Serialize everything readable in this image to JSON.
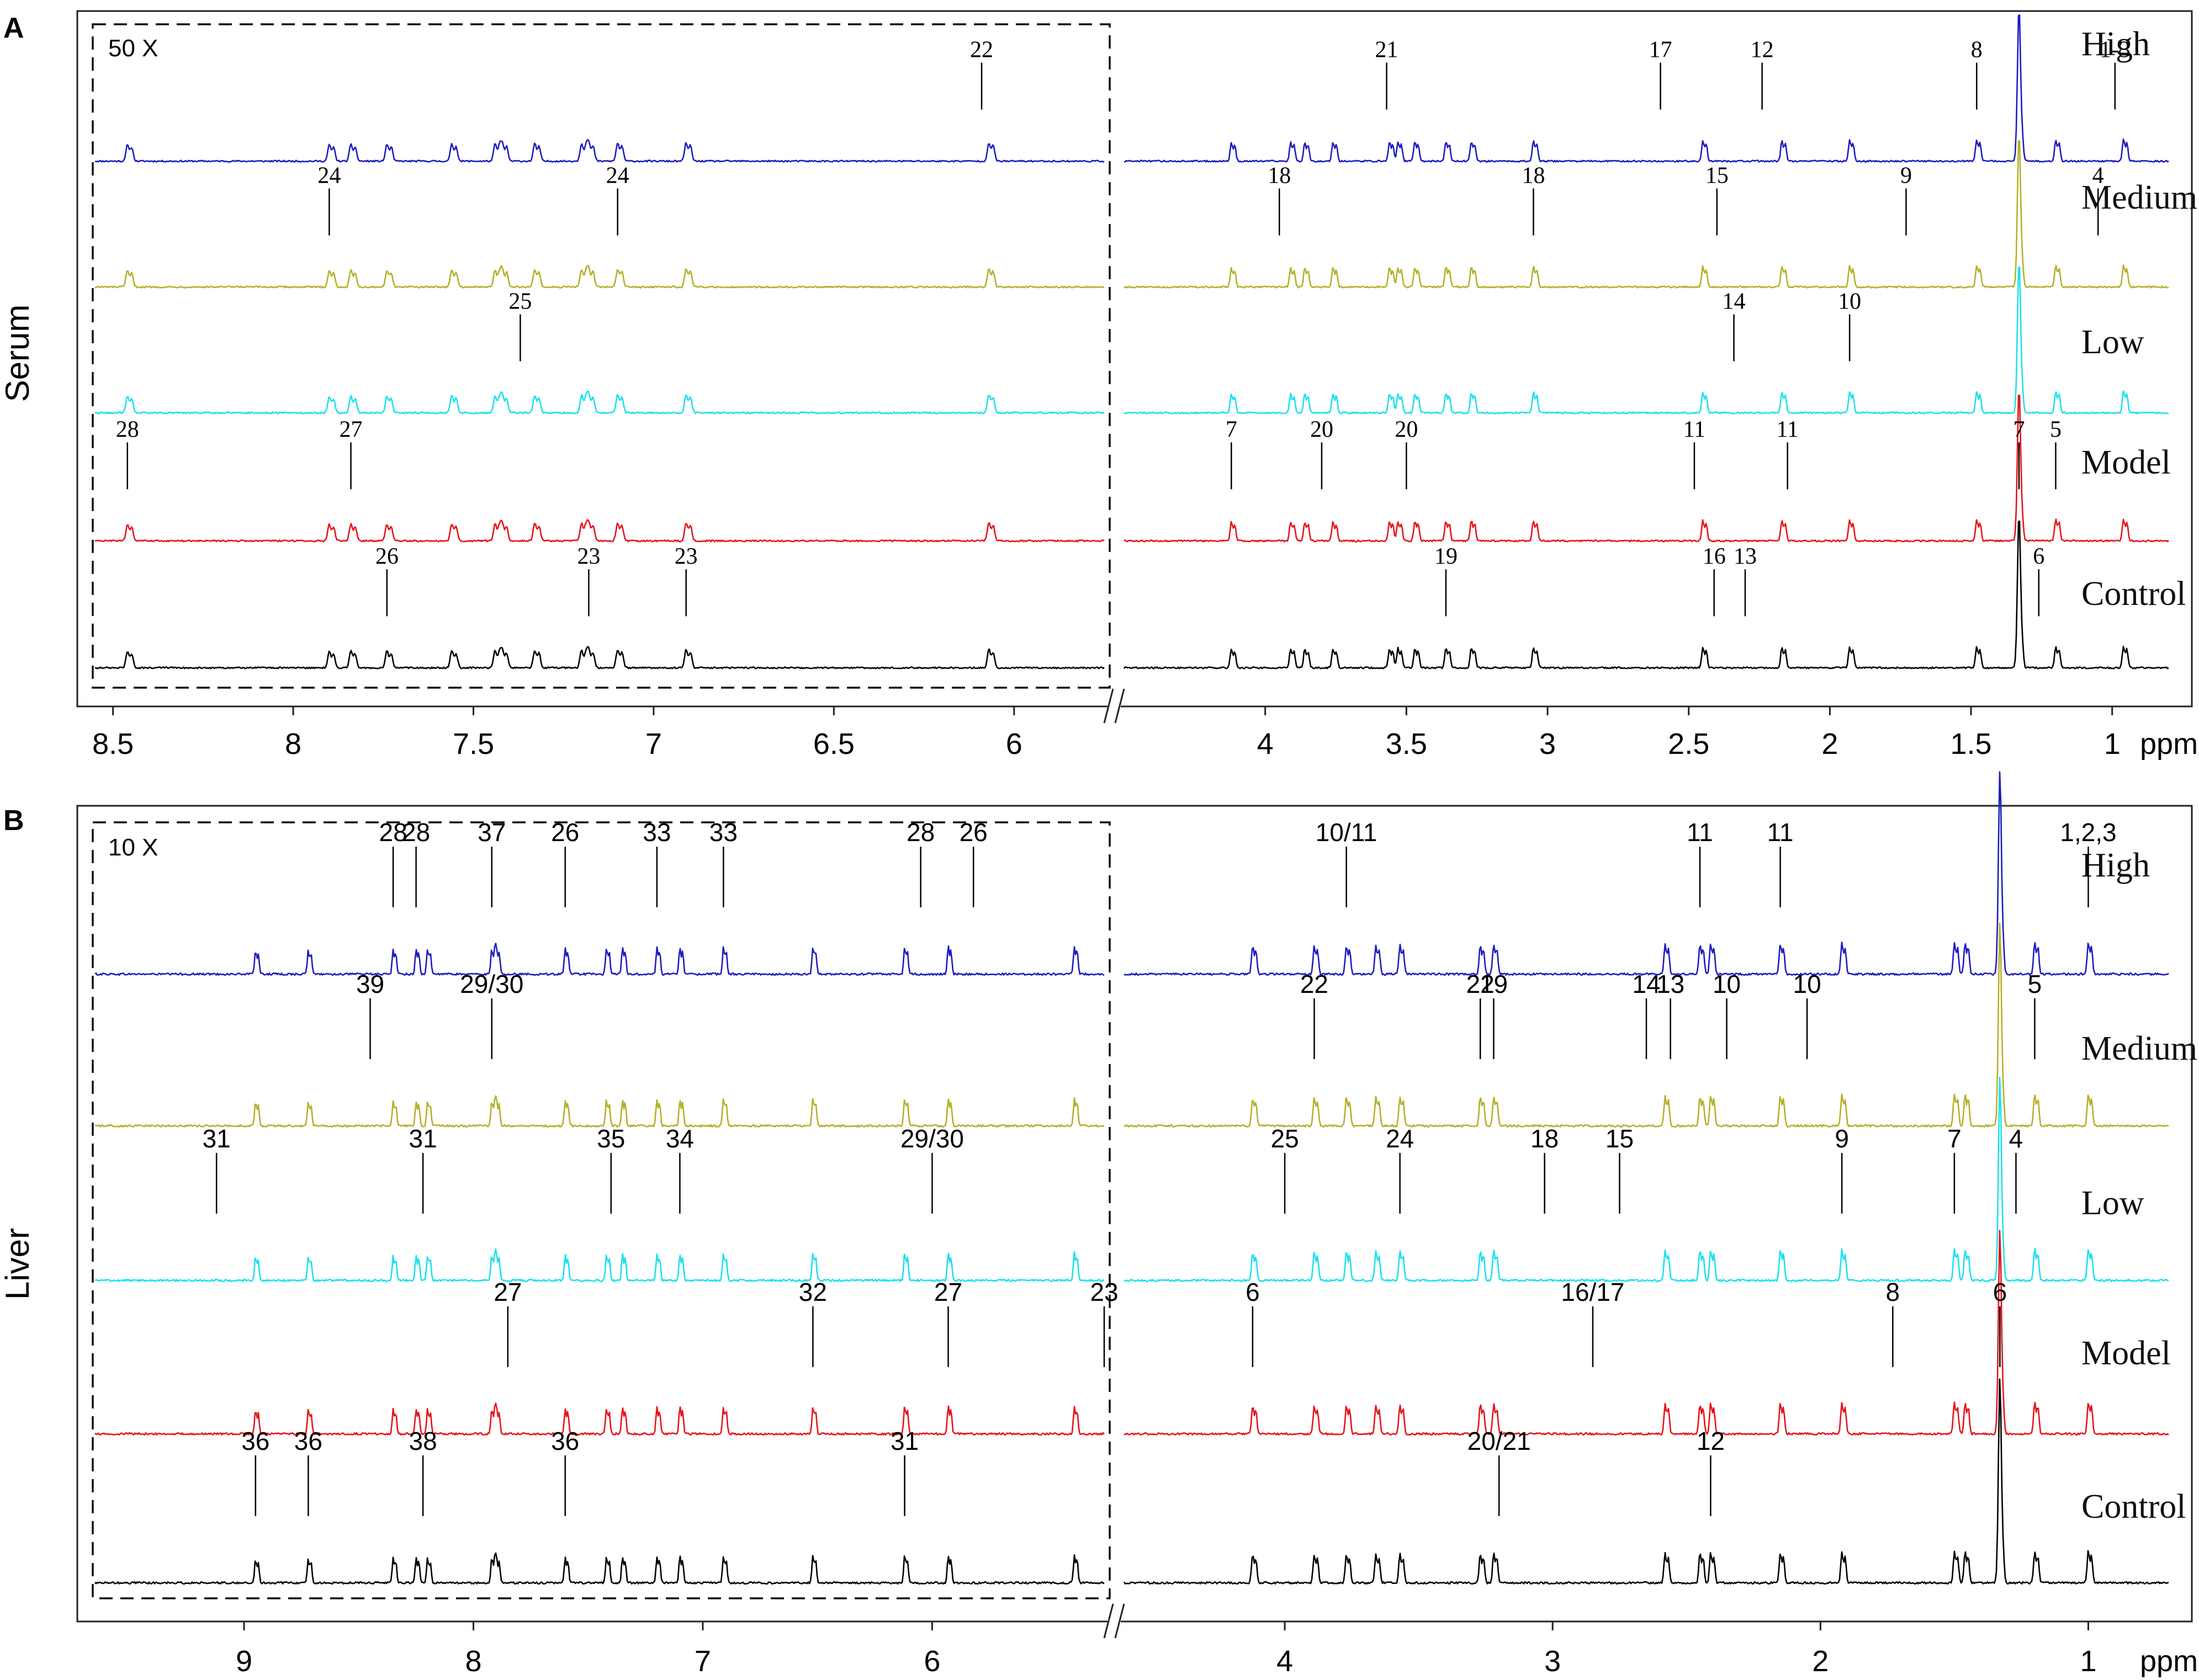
{
  "panels": [
    {
      "letter": "A",
      "tissue": "Serum",
      "scale_label": "50 X",
      "unit": "ppm",
      "groups": [
        {
          "name": "High",
          "color": "#1d1dbf"
        },
        {
          "name": "Medium",
          "color": "#b5b02a"
        },
        {
          "name": "Low",
          "color": "#1ee0ee"
        },
        {
          "name": "Model",
          "color": "#e6141b"
        },
        {
          "name": "Control",
          "color": "#000000"
        }
      ],
      "ticks_left": [
        "8.5",
        "8",
        "7.5",
        "7",
        "6.5",
        "6"
      ],
      "ticks_right": [
        "4",
        "3.5",
        "3",
        "2.5",
        "2",
        "1.5",
        "1"
      ]
    },
    {
      "letter": "B",
      "tissue": "Liver",
      "scale_label": "10 X",
      "unit": "ppm",
      "groups": [
        {
          "name": "High",
          "color": "#1d1dbf"
        },
        {
          "name": "Medium",
          "color": "#b5b02a"
        },
        {
          "name": "Low",
          "color": "#1ee0ee"
        },
        {
          "name": "Model",
          "color": "#e6141b"
        },
        {
          "name": "Control",
          "color": "#000000"
        }
      ],
      "ticks_left": [
        "9",
        "8",
        "7",
        "6"
      ],
      "ticks_right": [
        "4",
        "3",
        "2",
        "1"
      ]
    }
  ],
  "chart_data": [
    {
      "type": "line",
      "title": "",
      "xlabel": "ppm",
      "ylabel": "",
      "x_reversed": true,
      "x_segments": [
        [
          8.55,
          5.75
        ],
        [
          4.5,
          0.8
        ]
      ],
      "left_segment_scale": "50 X",
      "series": [
        {
          "name": "High",
          "peaks_ppm": [
            8.46,
            7.9,
            7.84,
            7.74,
            7.56,
            7.44,
            7.42,
            7.33,
            7.2,
            7.18,
            7.1,
            6.91,
            6.07,
            4.12,
            3.91,
            3.86,
            3.76,
            3.56,
            3.53,
            3.47,
            3.36,
            3.27,
            3.05,
            2.45,
            2.17,
            1.93,
            1.48,
            1.33,
            1.2,
            0.96
          ]
        },
        {
          "name": "Medium",
          "peaks_ppm": [
            8.46,
            7.9,
            7.84,
            7.74,
            7.56,
            7.44,
            7.42,
            7.33,
            7.2,
            7.18,
            7.1,
            6.91,
            6.07,
            4.12,
            3.91,
            3.86,
            3.76,
            3.56,
            3.53,
            3.47,
            3.36,
            3.27,
            3.05,
            2.45,
            2.17,
            1.93,
            1.48,
            1.33,
            1.2,
            0.96
          ]
        },
        {
          "name": "Low",
          "peaks_ppm": [
            8.46,
            7.9,
            7.84,
            7.74,
            7.56,
            7.44,
            7.42,
            7.33,
            7.2,
            7.18,
            7.1,
            6.91,
            6.07,
            4.12,
            3.91,
            3.86,
            3.76,
            3.56,
            3.53,
            3.47,
            3.36,
            3.27,
            3.05,
            2.45,
            2.17,
            1.93,
            1.48,
            1.33,
            1.2,
            0.96
          ]
        },
        {
          "name": "Model",
          "peaks_ppm": [
            8.46,
            7.9,
            7.84,
            7.74,
            7.56,
            7.44,
            7.42,
            7.33,
            7.2,
            7.18,
            7.1,
            6.91,
            6.07,
            4.12,
            3.91,
            3.86,
            3.76,
            3.56,
            3.53,
            3.47,
            3.36,
            3.27,
            3.05,
            2.45,
            2.17,
            1.93,
            1.48,
            1.33,
            1.2,
            0.96
          ]
        },
        {
          "name": "Control",
          "peaks_ppm": [
            8.46,
            7.9,
            7.84,
            7.74,
            7.56,
            7.44,
            7.42,
            7.33,
            7.2,
            7.18,
            7.1,
            6.91,
            6.07,
            4.12,
            3.91,
            3.86,
            3.76,
            3.56,
            3.53,
            3.47,
            3.36,
            3.27,
            3.05,
            2.45,
            2.17,
            1.93,
            1.48,
            1.33,
            1.2,
            0.96
          ]
        }
      ],
      "annotations": [
        {
          "label": "22",
          "x": 6.09,
          "series": "High"
        },
        {
          "label": "21",
          "x": 3.57,
          "series": "High"
        },
        {
          "label": "17",
          "x": 2.6,
          "series": "High"
        },
        {
          "label": "12",
          "x": 2.24,
          "series": "High"
        },
        {
          "label": "8",
          "x": 1.48,
          "series": "High"
        },
        {
          "label": "1-3",
          "x": 0.99,
          "series": "High"
        },
        {
          "label": "24",
          "x": 7.9,
          "series": "Medium"
        },
        {
          "label": "24",
          "x": 7.1,
          "series": "Medium"
        },
        {
          "label": "18",
          "x": 3.95,
          "series": "Medium"
        },
        {
          "label": "18",
          "x": 3.05,
          "series": "Medium"
        },
        {
          "label": "15",
          "x": 2.4,
          "series": "Medium"
        },
        {
          "label": "9",
          "x": 1.73,
          "series": "Medium"
        },
        {
          "label": "4",
          "x": 1.05,
          "series": "Medium"
        },
        {
          "label": "25",
          "x": 7.37,
          "series": "Low"
        },
        {
          "label": "14",
          "x": 2.34,
          "series": "Low"
        },
        {
          "label": "10",
          "x": 1.93,
          "series": "Low"
        },
        {
          "label": "28",
          "x": 8.46,
          "series": "Model"
        },
        {
          "label": "27",
          "x": 7.84,
          "series": "Model"
        },
        {
          "label": "7",
          "x": 4.12,
          "series": "Model"
        },
        {
          "label": "20",
          "x": 3.8,
          "series": "Model"
        },
        {
          "label": "20",
          "x": 3.5,
          "series": "Model"
        },
        {
          "label": "11",
          "x": 2.48,
          "series": "Model"
        },
        {
          "label": "11",
          "x": 2.15,
          "series": "Model"
        },
        {
          "label": "7",
          "x": 1.33,
          "series": "Model"
        },
        {
          "label": "5",
          "x": 1.2,
          "series": "Model"
        },
        {
          "label": "26",
          "x": 7.74,
          "series": "Control"
        },
        {
          "label": "23",
          "x": 7.18,
          "series": "Control"
        },
        {
          "label": "23",
          "x": 6.91,
          "series": "Control"
        },
        {
          "label": "19",
          "x": 3.36,
          "series": "Control"
        },
        {
          "label": "16",
          "x": 2.41,
          "series": "Control"
        },
        {
          "label": "13",
          "x": 2.3,
          "series": "Control"
        },
        {
          "label": "6",
          "x": 1.26,
          "series": "Control"
        }
      ]
    },
    {
      "type": "line",
      "title": "",
      "xlabel": "ppm",
      "ylabel": "",
      "x_reversed": true,
      "x_segments": [
        [
          9.65,
          5.25
        ],
        [
          4.6,
          0.7
        ]
      ],
      "left_segment_scale": "10 X",
      "series": [
        {
          "name": "High",
          "peaks_ppm": [
            8.95,
            8.72,
            8.35,
            8.25,
            8.2,
            7.92,
            7.9,
            7.6,
            7.42,
            7.35,
            7.2,
            7.1,
            6.91,
            6.52,
            6.12,
            5.93,
            5.38,
            4.12,
            3.89,
            3.77,
            3.66,
            3.57,
            3.27,
            3.22,
            2.58,
            2.45,
            2.41,
            2.15,
            1.92,
            1.5,
            1.46,
            1.33,
            1.2,
            1.0
          ]
        },
        {
          "name": "Medium",
          "peaks_ppm": [
            8.95,
            8.72,
            8.35,
            8.25,
            8.2,
            7.92,
            7.9,
            7.6,
            7.42,
            7.35,
            7.2,
            7.1,
            6.91,
            6.52,
            6.12,
            5.93,
            5.38,
            4.12,
            3.89,
            3.77,
            3.66,
            3.57,
            3.27,
            3.22,
            2.58,
            2.45,
            2.41,
            2.15,
            1.92,
            1.5,
            1.46,
            1.33,
            1.2,
            1.0
          ]
        },
        {
          "name": "Low",
          "peaks_ppm": [
            8.95,
            8.72,
            8.35,
            8.25,
            8.2,
            7.92,
            7.9,
            7.6,
            7.42,
            7.35,
            7.2,
            7.1,
            6.91,
            6.52,
            6.12,
            5.93,
            5.38,
            4.12,
            3.89,
            3.77,
            3.66,
            3.57,
            3.27,
            3.22,
            2.58,
            2.45,
            2.41,
            2.15,
            1.92,
            1.5,
            1.46,
            1.33,
            1.2,
            1.0
          ]
        },
        {
          "name": "Model",
          "peaks_ppm": [
            8.95,
            8.72,
            8.35,
            8.25,
            8.2,
            7.92,
            7.9,
            7.6,
            7.42,
            7.35,
            7.2,
            7.1,
            6.91,
            6.52,
            6.12,
            5.93,
            5.38,
            4.12,
            3.89,
            3.77,
            3.66,
            3.57,
            3.27,
            3.22,
            2.58,
            2.45,
            2.41,
            2.15,
            1.92,
            1.5,
            1.46,
            1.33,
            1.2,
            1.0
          ]
        },
        {
          "name": "Control",
          "peaks_ppm": [
            8.95,
            8.72,
            8.35,
            8.25,
            8.2,
            7.92,
            7.9,
            7.6,
            7.42,
            7.35,
            7.2,
            7.1,
            6.91,
            6.52,
            6.12,
            5.93,
            5.38,
            4.12,
            3.89,
            3.77,
            3.66,
            3.57,
            3.27,
            3.22,
            2.58,
            2.45,
            2.41,
            2.15,
            1.92,
            1.5,
            1.46,
            1.33,
            1.2,
            1.0
          ]
        }
      ],
      "annotations": [
        {
          "label": "28",
          "x": 8.35,
          "series": "High"
        },
        {
          "label": "28",
          "x": 8.25,
          "series": "High"
        },
        {
          "label": "37",
          "x": 7.92,
          "series": "High"
        },
        {
          "label": "26",
          "x": 7.6,
          "series": "High"
        },
        {
          "label": "33",
          "x": 7.2,
          "series": "High"
        },
        {
          "label": "33",
          "x": 6.91,
          "series": "High"
        },
        {
          "label": "28",
          "x": 6.05,
          "series": "High"
        },
        {
          "label": "26",
          "x": 5.82,
          "series": "High"
        },
        {
          "label": "10/11",
          "x": 3.77,
          "series": "High"
        },
        {
          "label": "11",
          "x": 2.45,
          "series": "High"
        },
        {
          "label": "11",
          "x": 2.15,
          "series": "High"
        },
        {
          "label": "1,2,3",
          "x": 1.0,
          "series": "High"
        },
        {
          "label": "39",
          "x": 8.45,
          "series": "Medium"
        },
        {
          "label": "29/30",
          "x": 7.92,
          "series": "Medium"
        },
        {
          "label": "22",
          "x": 3.89,
          "series": "Medium"
        },
        {
          "label": "22",
          "x": 3.27,
          "series": "Medium"
        },
        {
          "label": "19",
          "x": 3.22,
          "series": "Medium"
        },
        {
          "label": "14",
          "x": 2.65,
          "series": "Medium"
        },
        {
          "label": "13",
          "x": 2.56,
          "series": "Medium"
        },
        {
          "label": "10",
          "x": 2.35,
          "series": "Medium"
        },
        {
          "label": "10",
          "x": 2.05,
          "series": "Medium"
        },
        {
          "label": "5",
          "x": 1.2,
          "series": "Medium"
        },
        {
          "label": "31",
          "x": 9.12,
          "series": "Low"
        },
        {
          "label": "31",
          "x": 8.22,
          "series": "Low"
        },
        {
          "label": "35",
          "x": 7.4,
          "series": "Low"
        },
        {
          "label": "34",
          "x": 7.1,
          "series": "Low"
        },
        {
          "label": "29/30",
          "x": 6.0,
          "series": "Low"
        },
        {
          "label": "25",
          "x": 4.0,
          "series": "Low"
        },
        {
          "label": "24",
          "x": 3.57,
          "series": "Low"
        },
        {
          "label": "18",
          "x": 3.03,
          "series": "Low"
        },
        {
          "label": "15",
          "x": 2.75,
          "series": "Low"
        },
        {
          "label": "9",
          "x": 1.92,
          "series": "Low"
        },
        {
          "label": "7",
          "x": 1.5,
          "series": "Low"
        },
        {
          "label": "4",
          "x": 1.27,
          "series": "Low"
        },
        {
          "label": "27",
          "x": 7.85,
          "series": "Model"
        },
        {
          "label": "32",
          "x": 6.52,
          "series": "Model"
        },
        {
          "label": "27",
          "x": 5.93,
          "series": "Model"
        },
        {
          "label": "23",
          "x": 5.25,
          "series": "Model"
        },
        {
          "label": "6",
          "x": 4.12,
          "series": "Model"
        },
        {
          "label": "16/17",
          "x": 2.85,
          "series": "Model"
        },
        {
          "label": "8",
          "x": 1.73,
          "series": "Model"
        },
        {
          "label": "6",
          "x": 1.33,
          "series": "Model"
        },
        {
          "label": "36",
          "x": 8.95,
          "series": "Control"
        },
        {
          "label": "36",
          "x": 8.72,
          "series": "Control"
        },
        {
          "label": "38",
          "x": 8.22,
          "series": "Control"
        },
        {
          "label": "36",
          "x": 7.6,
          "series": "Control"
        },
        {
          "label": "31",
          "x": 6.12,
          "series": "Control"
        },
        {
          "label": "20/21",
          "x": 3.2,
          "series": "Control"
        },
        {
          "label": "12",
          "x": 2.41,
          "series": "Control"
        }
      ]
    }
  ]
}
